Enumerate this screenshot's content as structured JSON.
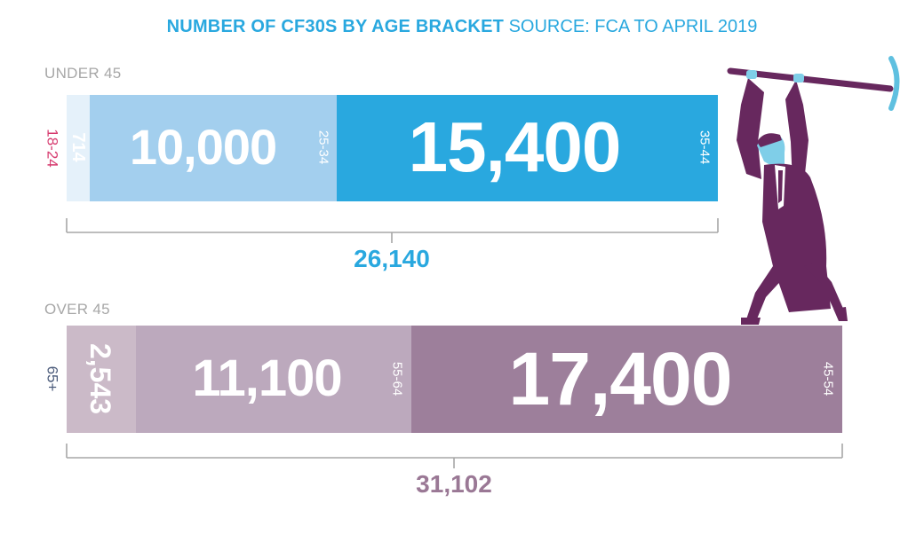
{
  "title": {
    "bold": "NUMBER OF CF30S BY AGE BRACKET",
    "source": "SOURCE: FCA TO APRIL 2019"
  },
  "colors": {
    "blue_lightest": "#e5f1fa",
    "blue_light": "#a3cfee",
    "blue": "#29a8df",
    "purple_lightest": "#cbbac8",
    "purple_light": "#bca9bd",
    "purple": "#9d7f9b",
    "purple_text": "#9a7895",
    "pink_text": "#d63a6e",
    "navy_text": "#4a5a7a",
    "grey_text": "#a7a7a7"
  },
  "chart_data": [
    {
      "type": "bar",
      "orientation": "horizontal-stacked",
      "title": "UNDER 45",
      "categories": [
        "18-24",
        "25-34",
        "35-44"
      ],
      "values": [
        714,
        10000,
        15400
      ],
      "value_labels": [
        "714",
        "10,000",
        "15,400"
      ],
      "total": 26140,
      "total_label": "26,140"
    },
    {
      "type": "bar",
      "orientation": "horizontal-stacked",
      "title": "OVER 45",
      "categories": [
        "65+",
        "55-64",
        "45-54"
      ],
      "values": [
        2543,
        11100,
        17400
      ],
      "value_labels": [
        "2,543",
        "11,100",
        "17,400"
      ],
      "total": 31102,
      "total_label": "31,102"
    }
  ],
  "illustration": "man-with-pickaxe"
}
